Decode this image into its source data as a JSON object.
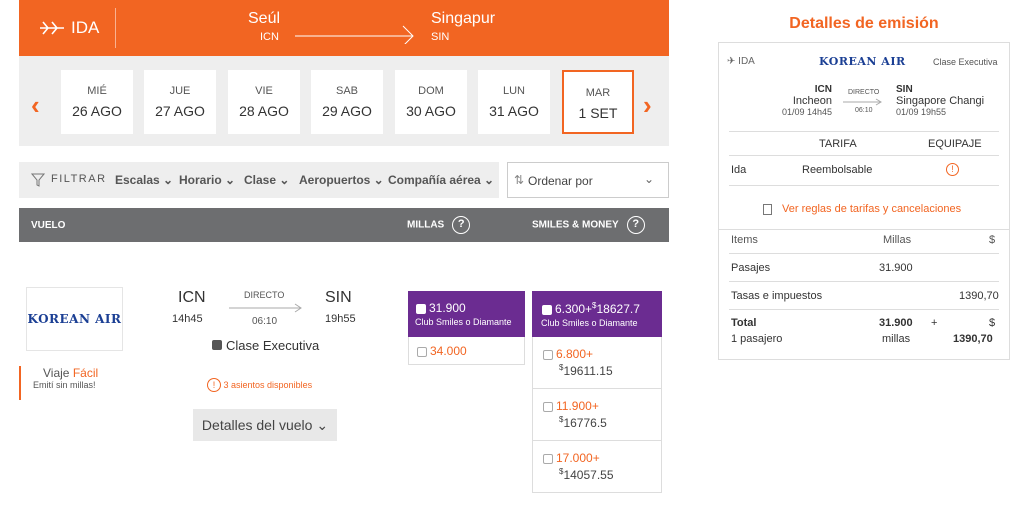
{
  "route": {
    "direction": "IDA",
    "origin_city": "Seúl",
    "origin_code": "ICN",
    "dest_city": "Singapur",
    "dest_code": "SIN"
  },
  "dates": [
    {
      "dow": "MIÉ",
      "day": "26 AGO"
    },
    {
      "dow": "JUE",
      "day": "27 AGO"
    },
    {
      "dow": "VIE",
      "day": "28 AGO"
    },
    {
      "dow": "SAB",
      "day": "29 AGO"
    },
    {
      "dow": "DOM",
      "day": "30 AGO"
    },
    {
      "dow": "LUN",
      "day": "31 AGO"
    },
    {
      "dow": "MAR",
      "day": "1 SET"
    }
  ],
  "filters": {
    "label": "FILTRAR",
    "items": [
      "Escalas",
      "Horario",
      "Clase",
      "Aeropuertos",
      "Compañía aérea"
    ],
    "sort_placeholder": "Ordenar por"
  },
  "table_header": {
    "flight": "VUELO",
    "miles": "MILLAS",
    "smiles_money": "SMILES & MONEY",
    "help": "?"
  },
  "flight": {
    "airline": "KOREAN AIR",
    "origin": "ICN",
    "dep_time": "14h45",
    "type": "DIRECTO",
    "duration": "06:10",
    "dest": "SIN",
    "arr_time": "19h55",
    "cabin": "Clase Executiva",
    "viaje_label": "Viaje",
    "viaje_easy": "Fácil",
    "viaje_sub": "Emití sin millas!",
    "seats": "3 asientos disponibles",
    "details_button": "Detalles del vuelo"
  },
  "miles_options": {
    "top_value": "31.900",
    "top_label": "Club Smiles o Diamante",
    "regular": "34.000"
  },
  "smiles_money": {
    "top_miles": "6.300+",
    "top_money": "18627.7",
    "top_label": "Club Smiles o Diamante",
    "options": [
      {
        "miles": "6.800+",
        "money": "19611.15"
      },
      {
        "miles": "11.900+",
        "money": "16776.5"
      },
      {
        "miles": "17.000+",
        "money": "14057.55"
      }
    ],
    "currency": "$"
  },
  "panel": {
    "title": "Detalles de emisión",
    "direction": "IDA",
    "airline": "KOREAN AIR",
    "cabin": "Clase Executiva",
    "origin_code": "ICN",
    "origin_name": "Incheon",
    "origin_dt": "01/09 14h45",
    "stop_type": "DIRECTO",
    "duration": "06:10",
    "dest_code": "SIN",
    "dest_name": "Singapore Changi",
    "dest_dt": "01/09 19h55",
    "col_tarifa": "TARIFA",
    "col_equipaje": "EQUIPAJE",
    "row_ida": "Ida",
    "row_tarifa": "Reembolsable",
    "rules_link": "Ver reglas de tarifas y cancelaciones",
    "items_label": "Items",
    "millas_label": "Millas",
    "currency": "$",
    "pasajes_label": "Pasajes",
    "pasajes_miles": "31.900",
    "tasas_label": "Tasas e impuestos",
    "tasas_value": "1390,70",
    "total_label": "Total",
    "total_sub": "1 pasajero",
    "total_miles": "31.900",
    "total_miles_unit": "millas",
    "plus": "+",
    "total_money": "1390,70"
  },
  "colors": {
    "accent": "#f26522",
    "purple": "#6b2c91",
    "header_gray": "#6d6e70"
  }
}
